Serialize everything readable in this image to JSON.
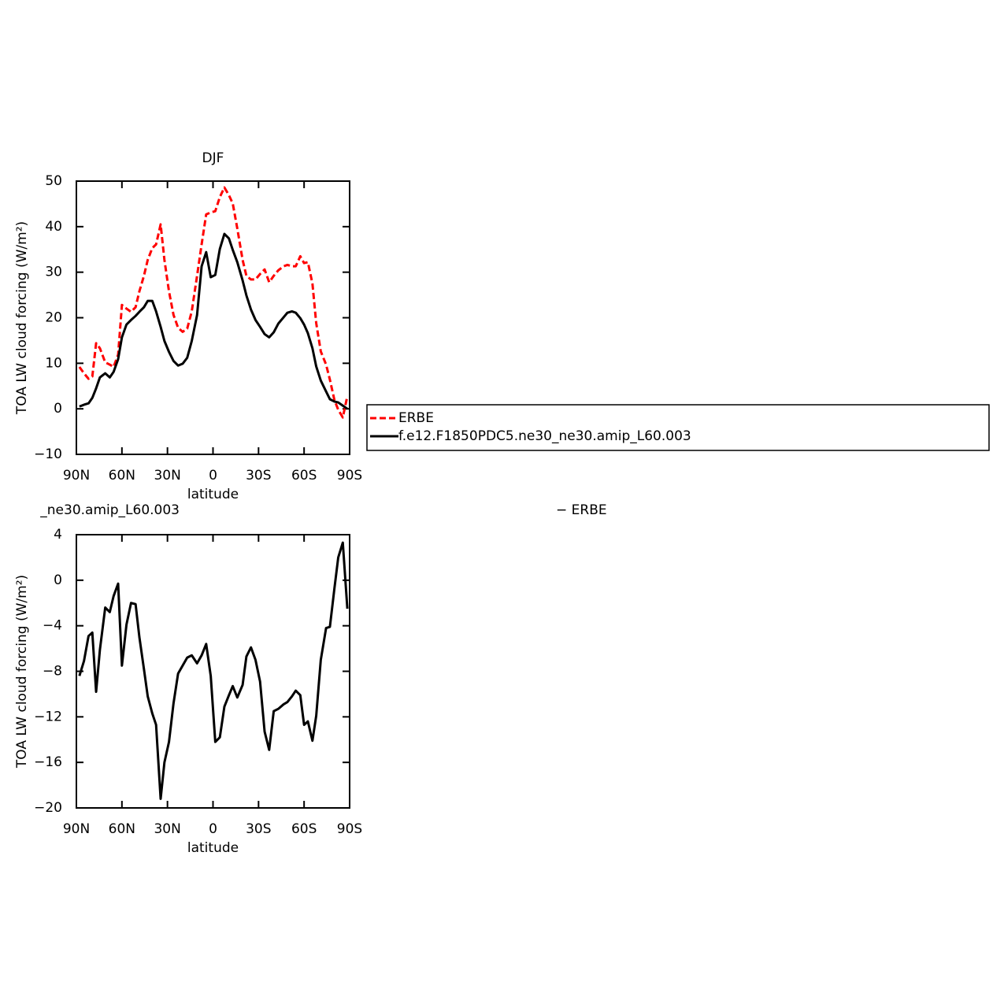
{
  "chart_data": [
    {
      "type": "line",
      "title": "DJF",
      "xlabel": "latitude",
      "ylabel": "TOA LW cloud forcing (W/m²)",
      "x": [
        88,
        85,
        82,
        79.5,
        77,
        74.5,
        71,
        68,
        65.5,
        62.5,
        60,
        57,
        54,
        51,
        48.5,
        45.5,
        43,
        40,
        37.5,
        34.5,
        32,
        29,
        26,
        23,
        20,
        17,
        14,
        10.5,
        7.5,
        4.5,
        1.5,
        -1.5,
        -4.5,
        -7.5,
        -10.5,
        -13,
        -16,
        -19.5,
        -22,
        -25,
        -28,
        -31,
        -34,
        -37,
        -40,
        -43,
        -46.5,
        -49,
        -52,
        -54.5,
        -57.5,
        -60,
        -62.5,
        -65.5,
        -68,
        -71,
        -74.5,
        -77,
        -80,
        -82.5,
        -85.5,
        -88.5
      ],
      "series": [
        {
          "name": "ERBE",
          "color": "#ff0000",
          "line_style": "dashed",
          "values": [
            9.2,
            7.8,
            6.6,
            7.1,
            14.4,
            13.3,
            10.2,
            9.7,
            9.2,
            11.9,
            22.8,
            22.0,
            21.3,
            22.3,
            25.8,
            29.2,
            32.7,
            35.3,
            36.1,
            40.5,
            32.7,
            25.8,
            20.6,
            17.8,
            16.9,
            17.6,
            21.4,
            29.2,
            36.1,
            42.7,
            43.1,
            43.4,
            46.5,
            48.6,
            46.9,
            45.1,
            39.6,
            32.7,
            29.2,
            28.4,
            28.4,
            29.6,
            30.6,
            27.8,
            29.2,
            30.4,
            31.3,
            31.6,
            31.3,
            31.3,
            33.5,
            32.0,
            32.2,
            27.5,
            18.8,
            12.6,
            9.7,
            6.4,
            1.9,
            -0.2,
            -1.9,
            2.8
          ]
        },
        {
          "name": "f.e12.F1850PDC5.ne30_ne30.amip_L60.003",
          "color": "#000000",
          "line_style": "solid",
          "values": [
            0.5,
            0.9,
            1.2,
            2.4,
            4.5,
            6.9,
            7.8,
            6.9,
            8.1,
            10.9,
            15.7,
            18.5,
            19.5,
            20.4,
            21.3,
            22.3,
            23.7,
            23.7,
            21.4,
            18.0,
            14.9,
            12.5,
            10.5,
            9.5,
            9.9,
            11.2,
            14.9,
            20.6,
            31.3,
            34.4,
            28.9,
            29.4,
            35.1,
            38.4,
            37.4,
            34.9,
            32.2,
            28.2,
            24.9,
            21.8,
            19.5,
            18.0,
            16.4,
            15.7,
            16.8,
            18.7,
            20.1,
            21.1,
            21.4,
            21.1,
            19.9,
            18.5,
            16.6,
            13.3,
            9.3,
            6.2,
            3.8,
            2.1,
            1.6,
            1.4,
            0.7,
            0.0
          ]
        }
      ],
      "xlim": [
        90,
        -90
      ],
      "xticks": [
        {
          "value": 90,
          "label": "90N"
        },
        {
          "value": 60,
          "label": "60N"
        },
        {
          "value": 30,
          "label": "30N"
        },
        0,
        {
          "value": -30,
          "label": "30S"
        },
        {
          "value": -60,
          "label": "60S"
        },
        {
          "value": -90,
          "label": "90S"
        }
      ],
      "ylim": [
        -10,
        50
      ],
      "yticks": [
        {
          "value": -10,
          "label": "−10"
        },
        0,
        10,
        20,
        30,
        40,
        50
      ],
      "legend": "right"
    },
    {
      "type": "line",
      "title_parts": [
        "_ne30.amip_L60.003",
        "− ERBE"
      ],
      "xlabel": "latitude",
      "ylabel": "TOA LW cloud forcing (W/m²)",
      "x": [
        88,
        85,
        82,
        79.5,
        77,
        74.5,
        71,
        68,
        65.5,
        62.5,
        60,
        57,
        54,
        51,
        48.5,
        45.5,
        43,
        40,
        37.5,
        34.5,
        32,
        29,
        26,
        23,
        20,
        17,
        14,
        10.5,
        7.5,
        4.5,
        1.5,
        -1.5,
        -4.5,
        -7.5,
        -10.5,
        -13,
        -16,
        -19.5,
        -22,
        -25,
        -28,
        -31,
        -34,
        -37,
        -40,
        -43,
        -46.5,
        -49,
        -52,
        -54.5,
        -57.5,
        -60,
        -62.5,
        -65.5,
        -68,
        -71,
        -74.5,
        -77,
        -80,
        -82.5,
        -85.5,
        -88.5
      ],
      "series": [
        {
          "color": "#000000",
          "line_style": "solid",
          "values": [
            -8.4,
            -7.1,
            -4.9,
            -4.6,
            -9.8,
            -6.1,
            -2.4,
            -2.8,
            -1.4,
            -0.3,
            -7.5,
            -3.9,
            -2.0,
            -2.1,
            -5.0,
            -7.8,
            -10.2,
            -11.7,
            -12.7,
            -19.2,
            -16.0,
            -14.2,
            -10.8,
            -8.2,
            -7.5,
            -6.8,
            -6.6,
            -7.3,
            -6.6,
            -5.6,
            -8.4,
            -14.2,
            -13.8,
            -11.1,
            -10.1,
            -9.3,
            -10.3,
            -9.2,
            -6.7,
            -5.9,
            -7.0,
            -8.9,
            -13.3,
            -14.9,
            -11.5,
            -11.3,
            -10.9,
            -10.7,
            -10.2,
            -9.7,
            -10.1,
            -12.7,
            -12.4,
            -14.1,
            -11.9,
            -7.0,
            -4.2,
            -4.1,
            -0.7,
            2.0,
            3.3,
            -2.5
          ]
        }
      ],
      "xlim": [
        90,
        -90
      ],
      "xticks": [
        {
          "value": 90,
          "label": "90N"
        },
        {
          "value": 60,
          "label": "60N"
        },
        {
          "value": 30,
          "label": "30N"
        },
        0,
        {
          "value": -30,
          "label": "30S"
        },
        {
          "value": -60,
          "label": "60S"
        },
        {
          "value": -90,
          "label": "90S"
        }
      ],
      "ylim": [
        -20,
        4
      ],
      "yticks": [
        {
          "value": -20,
          "label": "−20"
        },
        {
          "value": -16,
          "label": "−16"
        },
        {
          "value": -12,
          "label": "−12"
        },
        {
          "value": -8,
          "label": "−8"
        },
        {
          "value": -4,
          "label": "−4"
        },
        0,
        4
      ]
    }
  ]
}
